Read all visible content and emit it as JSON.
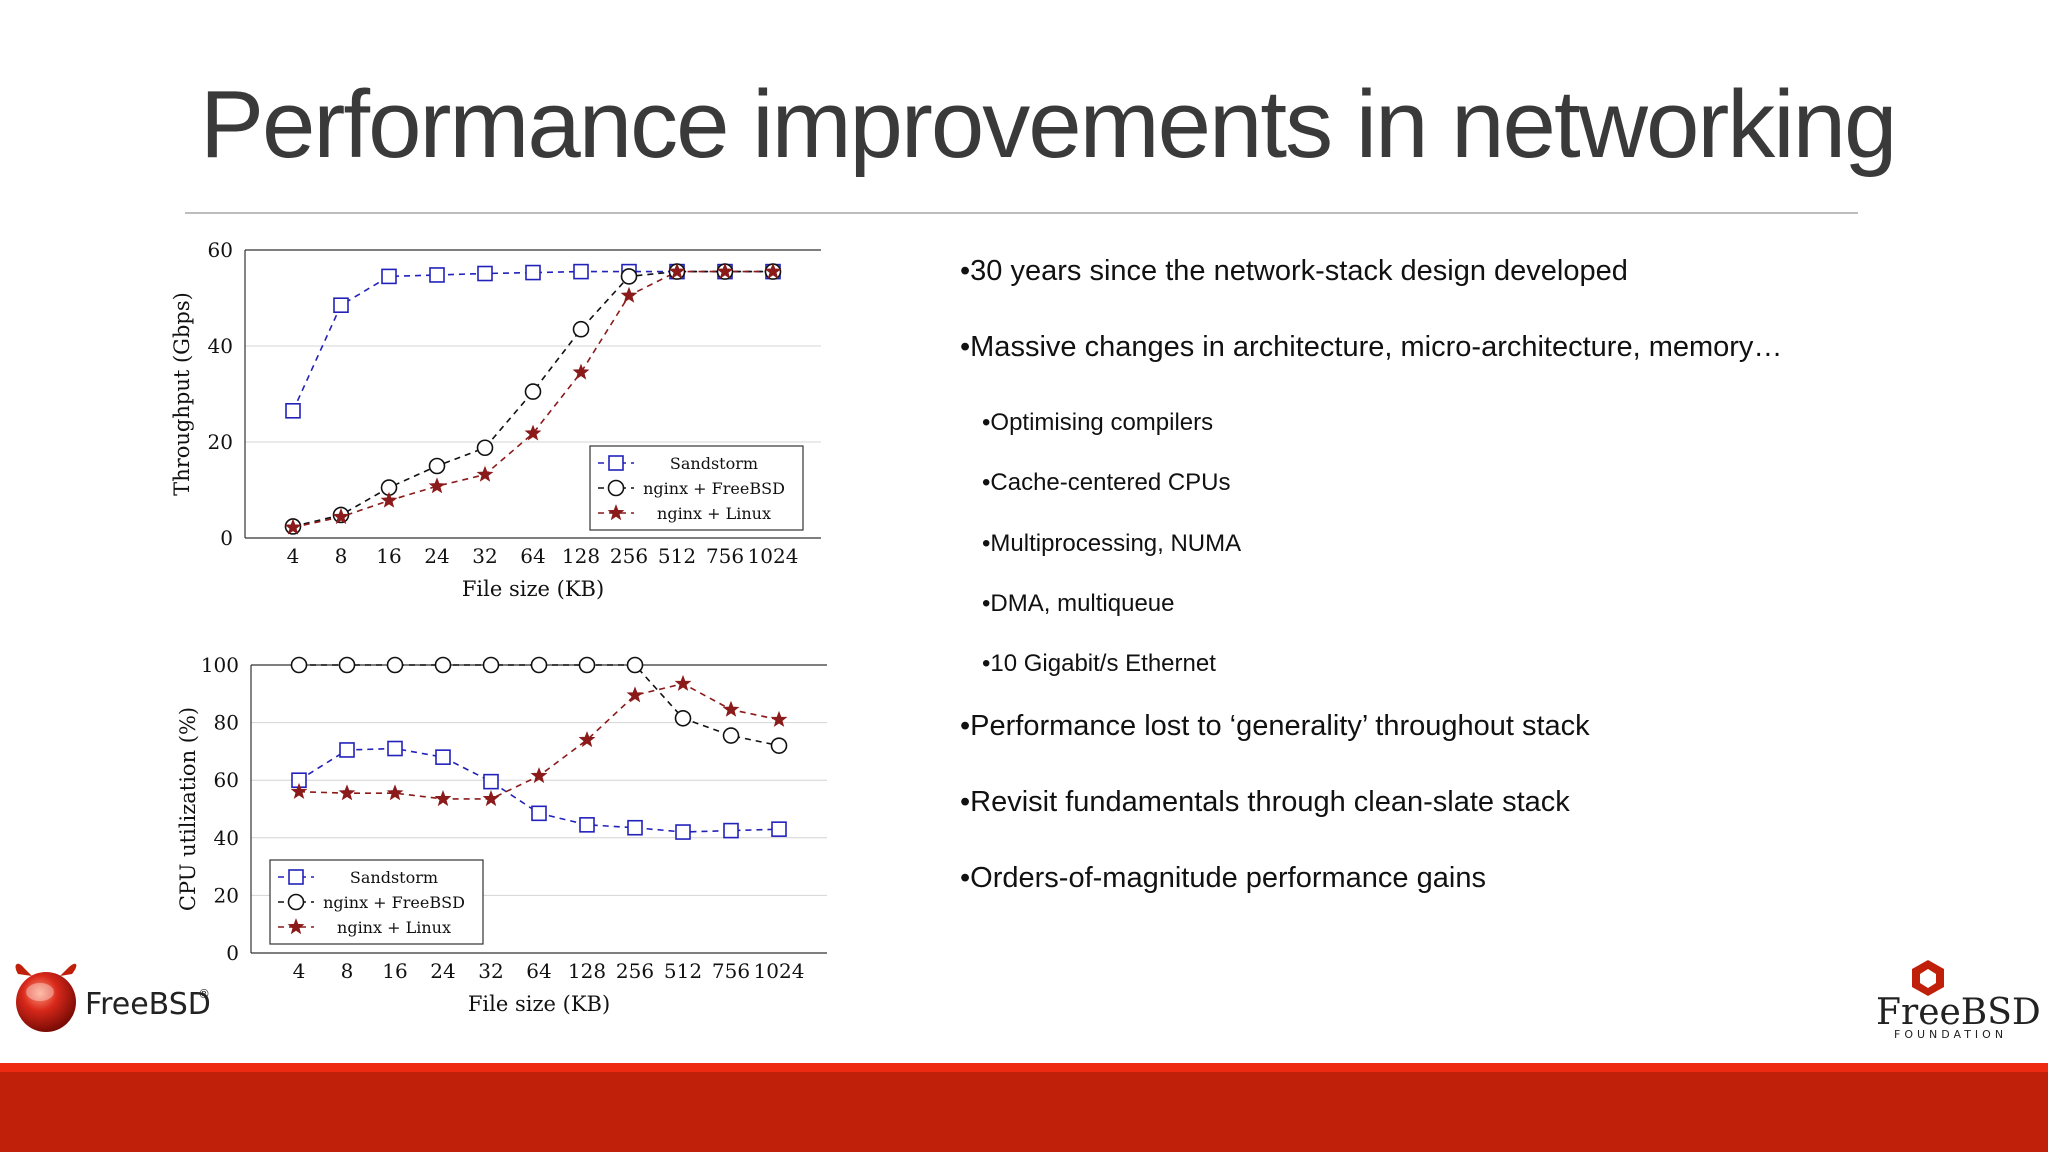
{
  "slide": {
    "title": "Performance improvements in networking"
  },
  "bullets": [
    {
      "level": 1,
      "text": "•30 years since the network-stack design developed"
    },
    {
      "level": 1,
      "text": "•Massive changes in architecture, micro-architecture, memory…"
    },
    {
      "level": 2,
      "text": "•Optimising compilers"
    },
    {
      "level": 2,
      "text": "•Cache-centered CPUs"
    },
    {
      "level": 2,
      "text": "•Multiprocessing, NUMA"
    },
    {
      "level": 2,
      "text": "•DMA, multiqueue"
    },
    {
      "level": 2,
      "text": "•10 Gigabit/s Ethernet"
    },
    {
      "level": 1,
      "text": "•Performance lost to ‘generality’ throughout stack"
    },
    {
      "level": 1,
      "text": "•Revisit fundamentals through clean-slate stack"
    },
    {
      "level": 1,
      "text": "•Orders-of-magnitude performance gains"
    }
  ],
  "chart_data": [
    {
      "type": "line",
      "xlabel": "File size (KB)",
      "ylabel": "Throughput (Gbps)",
      "categories": [
        "4",
        "8",
        "16",
        "24",
        "32",
        "64",
        "128",
        "256",
        "512",
        "756",
        "1024"
      ],
      "ylim": [
        0,
        60
      ],
      "yticks": [
        0,
        20,
        40,
        60
      ],
      "grid": true,
      "legend": "bottom-right",
      "series": [
        {
          "name": "Sandstorm",
          "marker": "square",
          "color": "#2222bb",
          "values": [
            26.5,
            48.5,
            54.5,
            54.8,
            55.1,
            55.3,
            55.5,
            55.5,
            55.5,
            55.5,
            55.5
          ]
        },
        {
          "name": "nginx + FreeBSD",
          "marker": "circle",
          "color": "#111111",
          "values": [
            2.4,
            4.8,
            10.5,
            15,
            18.8,
            30.5,
            43.5,
            54.5,
            55.5,
            55.5,
            55.5
          ]
        },
        {
          "name": "nginx + Linux",
          "marker": "star",
          "color": "#8b1a1a",
          "values": [
            2.2,
            4.4,
            7.8,
            10.8,
            13.2,
            21.8,
            34.5,
            50.5,
            55.5,
            55.5,
            55.5
          ]
        }
      ]
    },
    {
      "type": "line",
      "xlabel": "File size (KB)",
      "ylabel": "CPU utilization (%)",
      "categories": [
        "4",
        "8",
        "16",
        "24",
        "32",
        "64",
        "128",
        "256",
        "512",
        "756",
        "1024"
      ],
      "ylim": [
        0,
        100
      ],
      "yticks": [
        0,
        20,
        40,
        60,
        80,
        100
      ],
      "grid": true,
      "legend": "bottom-left",
      "series": [
        {
          "name": "Sandstorm",
          "marker": "square",
          "color": "#2222bb",
          "values": [
            60,
            70.5,
            71,
            68,
            59.5,
            48.5,
            44.5,
            43.5,
            42,
            42.5,
            43
          ]
        },
        {
          "name": "nginx + FreeBSD",
          "marker": "circle",
          "color": "#111111",
          "values": [
            100,
            100,
            100,
            100,
            100,
            100,
            100,
            100,
            81.5,
            75.5,
            72
          ]
        },
        {
          "name": "nginx + Linux",
          "marker": "star",
          "color": "#8b1a1a",
          "values": [
            56,
            55.5,
            55.5,
            53.5,
            53.5,
            61.5,
            74,
            89.5,
            93.5,
            84.5,
            81
          ]
        }
      ]
    }
  ],
  "logos": {
    "left_text": "FreeBSD",
    "left_mark": "®",
    "right_text": "FreeBSD",
    "right_sub": "FOUNDATION"
  },
  "colors": {
    "footer_bar": "#c0200a",
    "footer_stripe": "#ee2a12",
    "title": "#3a3a3a"
  }
}
